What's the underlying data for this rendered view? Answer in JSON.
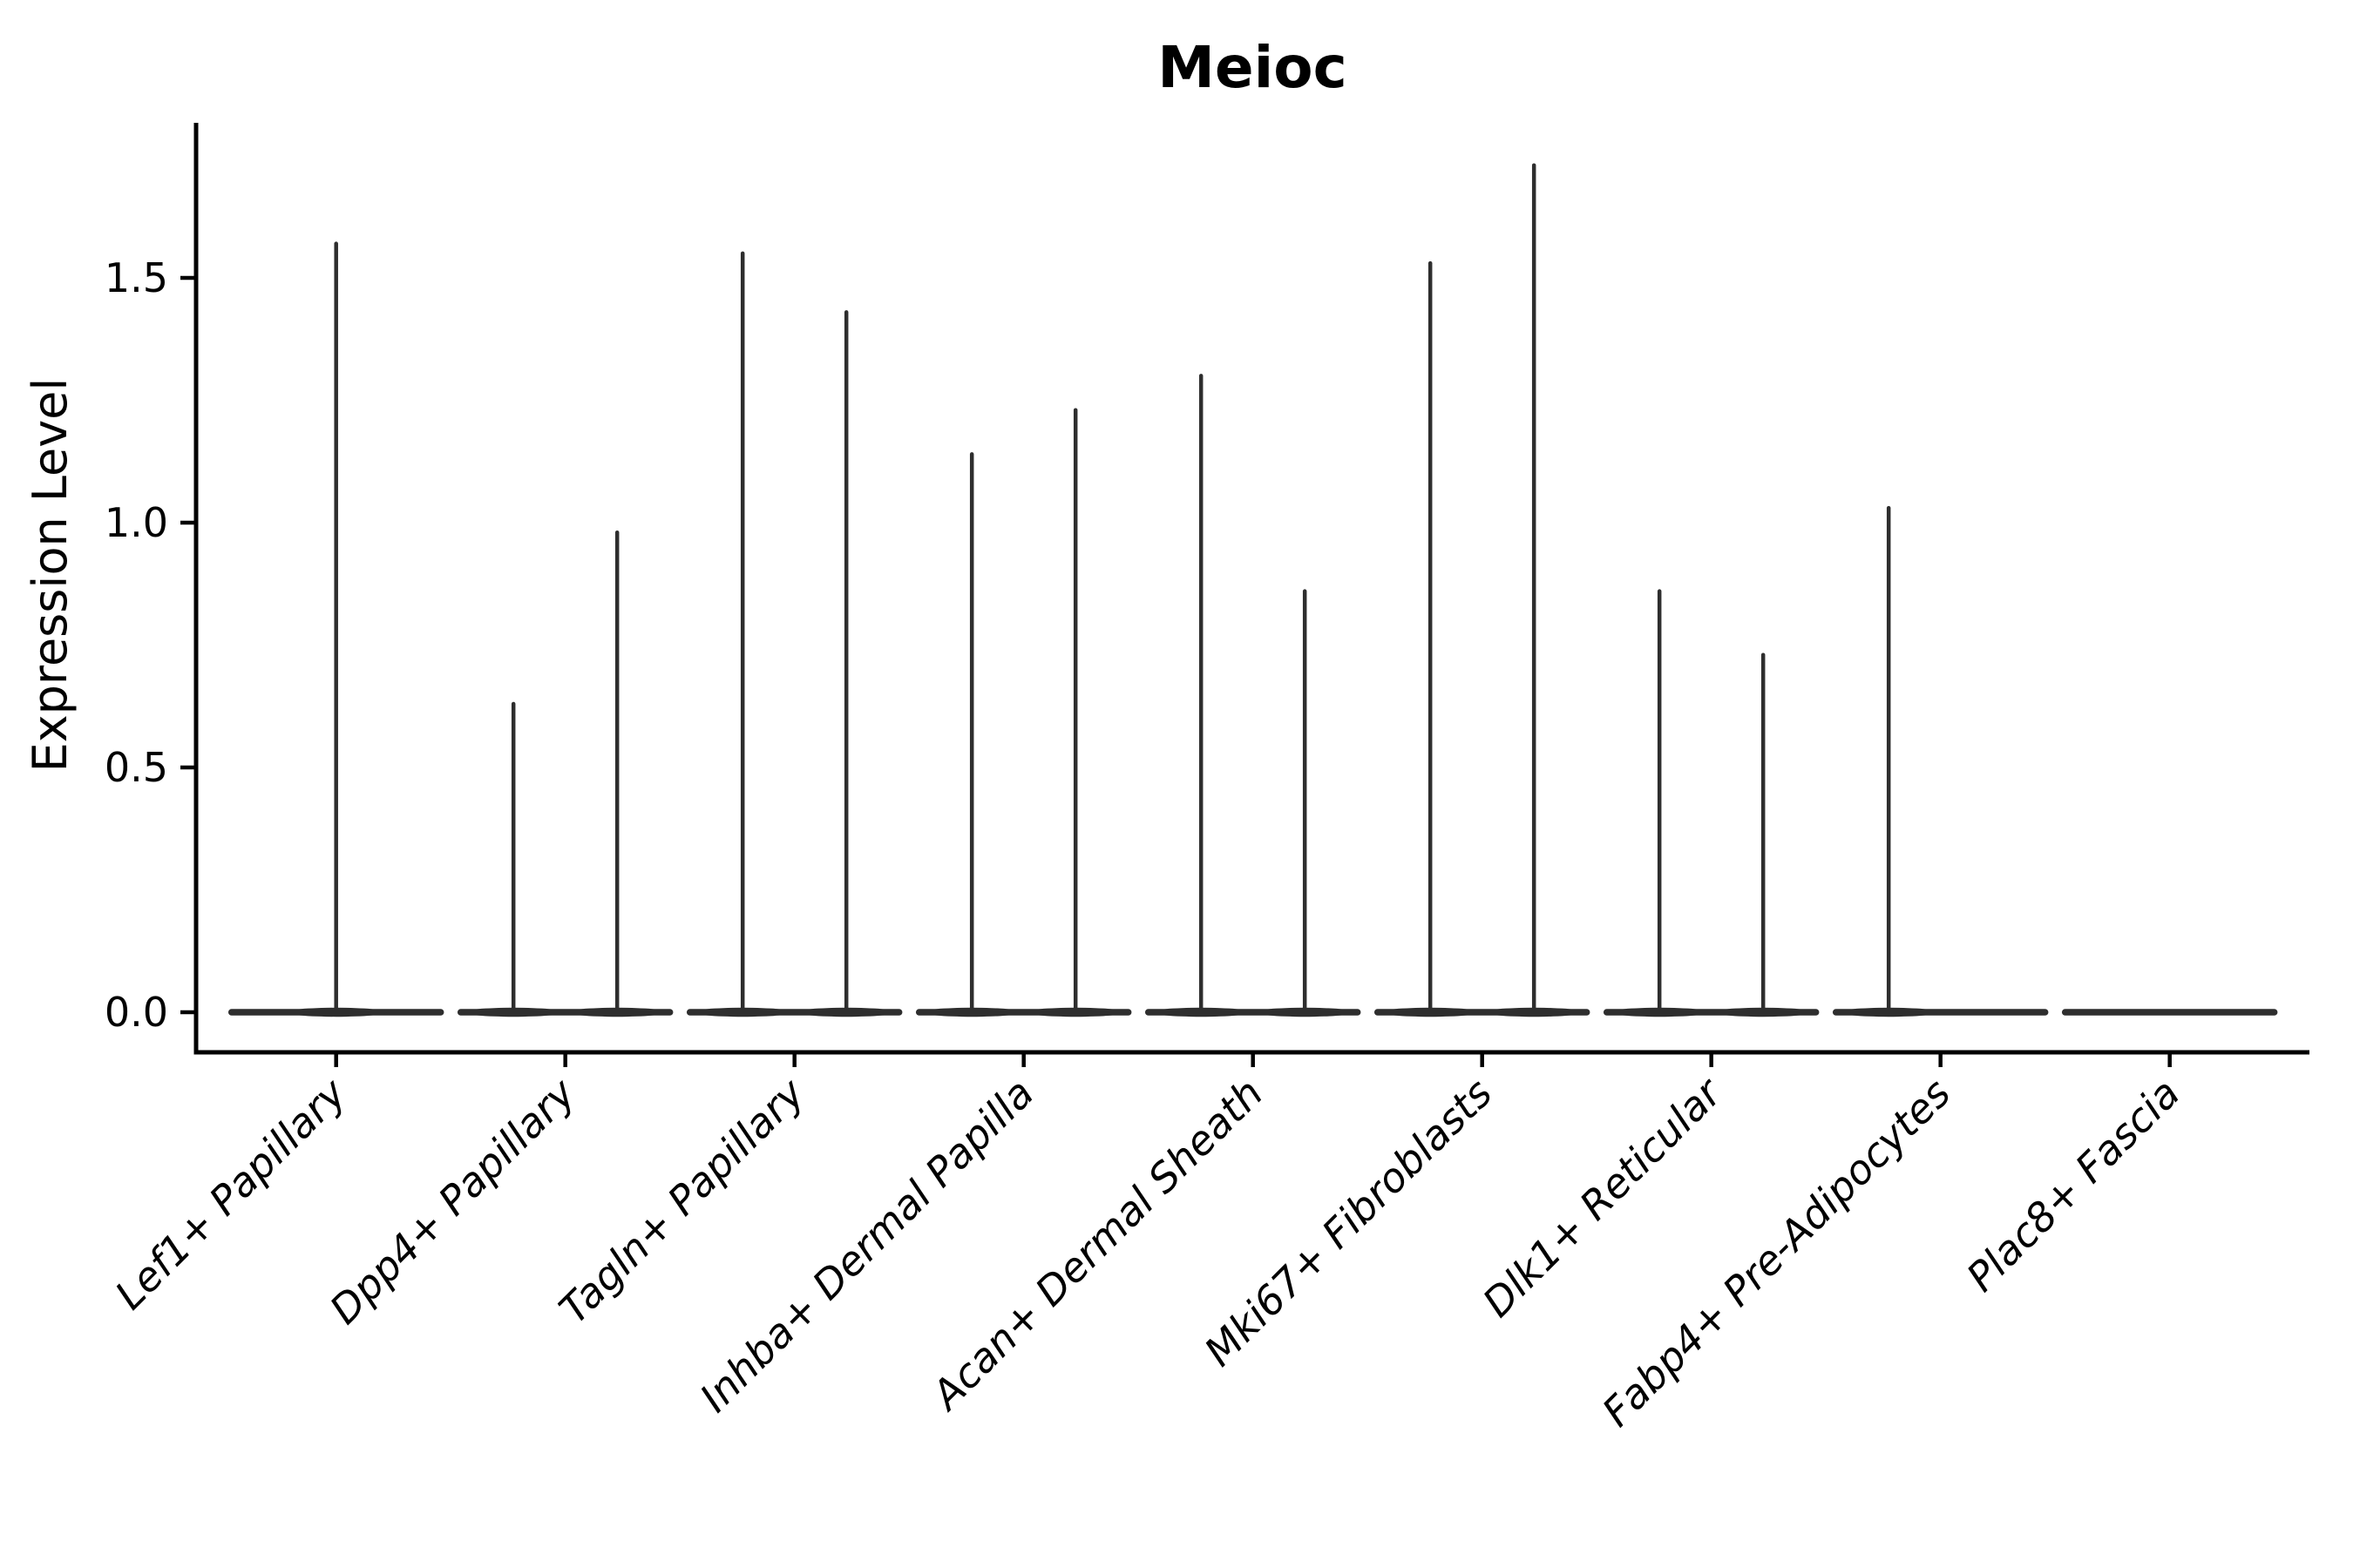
{
  "title": "Meioc",
  "ylabel": "Expression Level",
  "colors": {
    "background": "#ffffff",
    "violin_line": "#2e2e2e",
    "axis_line": "#000000",
    "text": "#000000"
  },
  "chart_data": {
    "type": "violin",
    "title": "Meioc",
    "xlabel": "",
    "ylabel": "Expression Level",
    "ylim": [
      -0.082,
      1.817
    ],
    "grid": false,
    "legend": false,
    "y_ticks": [
      {
        "label": "0.0",
        "value": 0.0
      },
      {
        "label": "0.5",
        "value": 0.5
      },
      {
        "label": "1.0",
        "value": 1.0
      },
      {
        "label": "1.5",
        "value": 1.5
      }
    ],
    "categories": [
      "Lef1+ Papillary",
      "Dpp4+ Papillary",
      "Tagln+ Papillary",
      "Inhba+ Dermal Papilla",
      "Acan+ Dermal Sheath",
      "Mki67+ Fibroblasts",
      "Dlk1+ Reticular",
      "Fabp4+ Pre-Adipocytes",
      "Plac8+ Fascia"
    ],
    "series": [
      {
        "category": "Lef1+ Papillary",
        "peaks": [
          {
            "offset": 0,
            "max_expression": 1.57
          }
        ]
      },
      {
        "category": "Dpp4+ Papillary",
        "peaks": [
          {
            "offset": -59.5,
            "max_expression": 0.63
          },
          {
            "offset": 59.5,
            "max_expression": 0.98
          }
        ]
      },
      {
        "category": "Tagln+ Papillary",
        "peaks": [
          {
            "offset": -59.5,
            "max_expression": 1.55
          },
          {
            "offset": 59.5,
            "max_expression": 1.43
          }
        ]
      },
      {
        "category": "Inhba+ Dermal Papilla",
        "peaks": [
          {
            "offset": -59.5,
            "max_expression": 1.14
          },
          {
            "offset": 59.5,
            "max_expression": 1.23
          }
        ]
      },
      {
        "category": "Acan+ Dermal Sheath",
        "peaks": [
          {
            "offset": -59.5,
            "max_expression": 1.3
          },
          {
            "offset": 59.5,
            "max_expression": 0.86
          }
        ]
      },
      {
        "category": "Mki67+ Fibroblasts",
        "peaks": [
          {
            "offset": -59.5,
            "max_expression": 1.53
          },
          {
            "offset": 59.5,
            "max_expression": 1.73
          }
        ]
      },
      {
        "category": "Dlk1+ Reticular",
        "peaks": [
          {
            "offset": -59.5,
            "max_expression": 0.86
          },
          {
            "offset": 59.5,
            "max_expression": 0.73
          }
        ]
      },
      {
        "category": "Fabp4+ Pre-Adipocytes",
        "peaks": [
          {
            "offset": -59.5,
            "max_expression": 1.03
          }
        ]
      },
      {
        "category": "Plac8+ Fascia",
        "peaks": []
      }
    ]
  }
}
